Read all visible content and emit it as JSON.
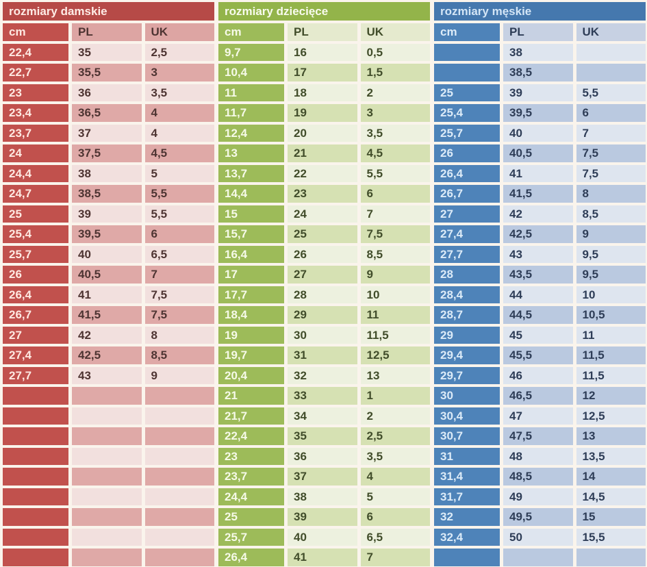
{
  "chart_data": [
    {
      "type": "table",
      "id": "women",
      "title": "rozmiary damskie",
      "columns": [
        "cm",
        "PL",
        "UK"
      ],
      "rows": [
        [
          "22,4",
          "35",
          "2,5"
        ],
        [
          "22,7",
          "35,5",
          "3"
        ],
        [
          "23",
          "36",
          "3,5"
        ],
        [
          "23,4",
          "36,5",
          "4"
        ],
        [
          "23,7",
          "37",
          "4"
        ],
        [
          "24",
          "37,5",
          "4,5"
        ],
        [
          "24,4",
          "38",
          "5"
        ],
        [
          "24,7",
          "38,5",
          "5,5"
        ],
        [
          "25",
          "39",
          "5,5"
        ],
        [
          "25,4",
          "39,5",
          "6"
        ],
        [
          "25,7",
          "40",
          "6,5"
        ],
        [
          "26",
          "40,5",
          "7"
        ],
        [
          "26,4",
          "41",
          "7,5"
        ],
        [
          "26,7",
          "41,5",
          "7,5"
        ],
        [
          "27",
          "42",
          "8"
        ],
        [
          "27,4",
          "42,5",
          "8,5"
        ],
        [
          "27,7",
          "43",
          "9"
        ]
      ],
      "empty_rows": 9,
      "colors": {
        "title_bg": "#b64a47",
        "title_text": "#ffece6",
        "cm_bg": "#c1514d",
        "cm_text": "#ffe9e2",
        "header_bg": "#dda5a3",
        "row_light": "#f2e0de",
        "row_dark": "#dfa9a7",
        "text": "#4e3432"
      }
    },
    {
      "type": "table",
      "id": "children",
      "title": "rozmiary dziecięce",
      "columns": [
        "cm",
        "PL",
        "UK"
      ],
      "rows": [
        [
          "9,7",
          "16",
          "0,5"
        ],
        [
          "10,4",
          "17",
          "1,5"
        ],
        [
          "11",
          "18",
          "2"
        ],
        [
          "11,7",
          "19",
          "3"
        ],
        [
          "12,4",
          "20",
          "3,5"
        ],
        [
          "13",
          "21",
          "4,5"
        ],
        [
          "13,7",
          "22",
          "5,5"
        ],
        [
          "14,4",
          "23",
          "6"
        ],
        [
          "15",
          "24",
          "7"
        ],
        [
          "15,7",
          "25",
          "7,5"
        ],
        [
          "16,4",
          "26",
          "8,5"
        ],
        [
          "17",
          "27",
          "9"
        ],
        [
          "17,7",
          "28",
          "10"
        ],
        [
          "18,4",
          "29",
          "11"
        ],
        [
          "19",
          "30",
          "11,5"
        ],
        [
          "19,7",
          "31",
          "12,5"
        ],
        [
          "20,4",
          "32",
          "13"
        ],
        [
          "21",
          "33",
          "1"
        ],
        [
          "21,7",
          "34",
          "2"
        ],
        [
          "22,4",
          "35",
          "2,5"
        ],
        [
          "23",
          "36",
          "3,5"
        ],
        [
          "23,7",
          "37",
          "4"
        ],
        [
          "24,4",
          "38",
          "5"
        ],
        [
          "25",
          "39",
          "6"
        ],
        [
          "25,7",
          "40",
          "6,5"
        ],
        [
          "26,4",
          "41",
          "7"
        ]
      ],
      "empty_rows": 0,
      "colors": {
        "title_bg": "#93b44a",
        "title_text": "#f8fbee",
        "cm_bg": "#9dbb59",
        "cm_text": "#f6fae8",
        "header_bg": "#e5eace",
        "row_light": "#edf1df",
        "row_dark": "#d6e1b3",
        "text": "#414d2a"
      }
    },
    {
      "type": "table",
      "id": "men",
      "title": "rozmiary męskie",
      "columns": [
        "cm",
        "PL",
        "UK"
      ],
      "rows": [
        [
          "",
          "38",
          ""
        ],
        [
          "",
          "38,5",
          ""
        ],
        [
          "25",
          "39",
          "5,5"
        ],
        [
          "25,4",
          "39,5",
          "6"
        ],
        [
          "25,7",
          "40",
          "7"
        ],
        [
          "26",
          "40,5",
          "7,5"
        ],
        [
          "26,4",
          "41",
          "7,5"
        ],
        [
          "26,7",
          "41,5",
          "8"
        ],
        [
          "27",
          "42",
          "8,5"
        ],
        [
          "27,4",
          "42,5",
          "9"
        ],
        [
          "27,7",
          "43",
          "9,5"
        ],
        [
          "28",
          "43,5",
          "9,5"
        ],
        [
          "28,4",
          "44",
          "10"
        ],
        [
          "28,7",
          "44,5",
          "10,5"
        ],
        [
          "29",
          "45",
          "11"
        ],
        [
          "29,4",
          "45,5",
          "11,5"
        ],
        [
          "29,7",
          "46",
          "11,5"
        ],
        [
          "30",
          "46,5",
          "12"
        ],
        [
          "30,4",
          "47",
          "12,5"
        ],
        [
          "30,7",
          "47,5",
          "13"
        ],
        [
          "31",
          "48",
          "13,5"
        ],
        [
          "31,4",
          "48,5",
          "14"
        ],
        [
          "31,7",
          "49",
          "14,5"
        ],
        [
          "32",
          "49,5",
          "15"
        ],
        [
          "32,4",
          "50",
          "15,5"
        ]
      ],
      "empty_rows": 1,
      "colors": {
        "title_bg": "#4578ae",
        "title_text": "#d3e5f6",
        "cm_bg": "#4e83b9",
        "cm_text": "#dcebf8",
        "header_bg": "#c7d1e3",
        "row_light": "#dee5ef",
        "row_dark": "#bac9e0",
        "text": "#2e3d57"
      }
    }
  ]
}
